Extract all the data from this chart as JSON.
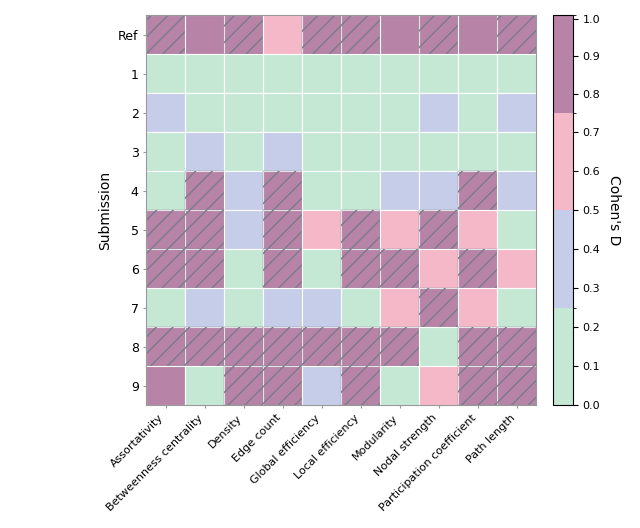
{
  "rows": [
    "Ref",
    "1",
    "2",
    "3",
    "4",
    "5",
    "6",
    "7",
    "8",
    "9"
  ],
  "cols": [
    "Assortativity",
    "Betweenness centrality",
    "Density",
    "Edge count",
    "Global efficiency",
    "Local efficiency",
    "Modularity",
    "Nodal strength",
    "Participation coefficient",
    "Path length"
  ],
  "values": [
    [
      -1,
      0.9,
      -1,
      0.65,
      -1,
      -1,
      0.9,
      -1,
      0.9,
      -1
    ],
    [
      0.1,
      0.1,
      0.1,
      0.1,
      0.1,
      0.1,
      0.1,
      0.1,
      0.1,
      0.1
    ],
    [
      0.4,
      0.1,
      0.1,
      0.1,
      0.1,
      0.1,
      0.1,
      0.4,
      0.1,
      0.4
    ],
    [
      0.1,
      0.4,
      0.1,
      0.4,
      0.1,
      0.1,
      0.1,
      0.1,
      0.1,
      0.1
    ],
    [
      0.1,
      -1,
      0.4,
      -1,
      0.1,
      0.1,
      0.4,
      0.4,
      -1,
      0.4
    ],
    [
      -1,
      -1,
      0.4,
      -1,
      0.65,
      -1,
      0.65,
      -1,
      0.65,
      0.1
    ],
    [
      -1,
      -1,
      0.1,
      -1,
      0.1,
      -1,
      -1,
      0.65,
      -1,
      0.65
    ],
    [
      0.1,
      0.4,
      0.1,
      0.4,
      0.4,
      0.1,
      0.65,
      -1,
      0.65,
      0.1
    ],
    [
      -1,
      -1,
      -1,
      -1,
      -1,
      -1,
      -1,
      0.1,
      -1,
      -1
    ],
    [
      0.9,
      0.1,
      -1,
      -1,
      0.4,
      -1,
      0.1,
      0.65,
      -1,
      -1
    ]
  ],
  "hatch_mask": [
    [
      1,
      0,
      1,
      0,
      1,
      1,
      0,
      1,
      0,
      1
    ],
    [
      0,
      0,
      0,
      0,
      0,
      0,
      0,
      0,
      0,
      0
    ],
    [
      0,
      0,
      0,
      0,
      0,
      0,
      0,
      0,
      0,
      0
    ],
    [
      0,
      0,
      0,
      0,
      0,
      0,
      0,
      0,
      0,
      0
    ],
    [
      0,
      1,
      0,
      1,
      0,
      0,
      0,
      0,
      1,
      0
    ],
    [
      1,
      1,
      0,
      1,
      0,
      1,
      0,
      1,
      0,
      0
    ],
    [
      1,
      1,
      0,
      1,
      0,
      1,
      1,
      0,
      1,
      0
    ],
    [
      0,
      0,
      0,
      0,
      0,
      0,
      0,
      1,
      0,
      0
    ],
    [
      1,
      1,
      1,
      1,
      1,
      1,
      1,
      0,
      1,
      1
    ],
    [
      0,
      0,
      1,
      1,
      0,
      1,
      0,
      0,
      1,
      1
    ]
  ],
  "hatch_bg_values": [
    [
      0.9,
      0,
      0.9,
      0,
      0.9,
      0.9,
      0,
      0.9,
      0,
      0.9
    ],
    [
      0,
      0,
      0,
      0,
      0,
      0,
      0,
      0,
      0,
      0
    ],
    [
      0,
      0,
      0,
      0,
      0,
      0,
      0,
      0,
      0,
      0
    ],
    [
      0,
      0,
      0,
      0,
      0,
      0,
      0,
      0,
      0,
      0
    ],
    [
      0,
      0.9,
      0,
      0.9,
      0,
      0,
      0,
      0,
      0.9,
      0
    ],
    [
      0.9,
      0.9,
      0,
      0.9,
      0,
      0.9,
      0,
      0.9,
      0,
      0
    ],
    [
      0.9,
      0.9,
      0,
      0.9,
      0,
      0.9,
      0.9,
      0,
      0.9,
      0
    ],
    [
      0,
      0,
      0,
      0,
      0,
      0,
      0,
      0.9,
      0,
      0
    ],
    [
      0.9,
      0.9,
      0.9,
      0.9,
      0.9,
      0.9,
      0.9,
      0,
      0.9,
      0.9
    ],
    [
      0,
      0,
      0.9,
      0.9,
      0,
      0.9,
      0,
      0,
      0.9,
      0.9
    ]
  ],
  "colormap_colors": [
    "#c5e8d5",
    "#c5cde8",
    "#f4b8c8",
    "#b784a7"
  ],
  "colormap_bounds": [
    0.0,
    0.25,
    0.5,
    0.75,
    1.01
  ],
  "hatch_color": "#7a7a8a",
  "ylabel": "Submission",
  "colorbar_label": "Cohen's D",
  "colorbar_ticks": [
    0,
    0.1,
    0.2,
    0.3,
    0.4,
    0.5,
    0.6,
    0.7,
    0.8,
    0.9,
    1.0
  ],
  "figsize": [
    6.4,
    5.28
  ],
  "dpi": 100
}
